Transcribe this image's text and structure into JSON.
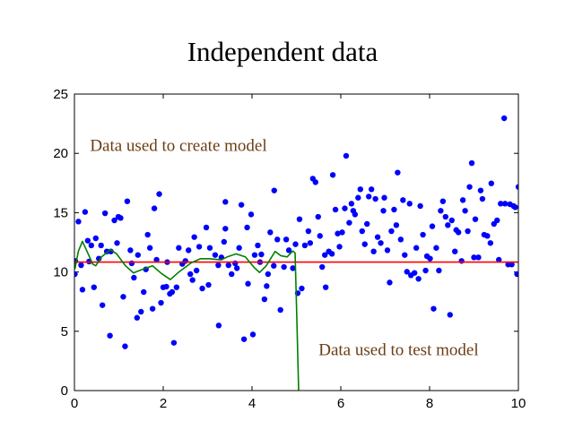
{
  "chart_data": {
    "type": "scatter",
    "title": "Independent data",
    "xlabel": "",
    "ylabel": "",
    "xlim": [
      0,
      10
    ],
    "ylim": [
      0,
      25
    ],
    "xticks": [
      0,
      2,
      4,
      6,
      8,
      10
    ],
    "yticks": [
      0,
      5,
      10,
      15,
      20,
      25
    ],
    "grid": false,
    "annotations": [
      {
        "text": "Data used to create model",
        "x": 0.35,
        "y": 20.2
      },
      {
        "text": "Data used to test model",
        "x": 5.5,
        "y": 3.0
      }
    ],
    "colors": {
      "points": "#0000ff",
      "mean_line": "#ff0000",
      "fit_curve": "#007f00",
      "annotation": "#6b3d12"
    },
    "series": [
      {
        "name": "data",
        "type": "scatter",
        "points": [
          [
            0.01,
            9.82
          ],
          [
            0.09,
            14.25
          ],
          [
            0.02,
            10.93
          ],
          [
            0.15,
            10.57
          ],
          [
            0.24,
            15.06
          ],
          [
            0.18,
            8.51
          ],
          [
            0.3,
            12.64
          ],
          [
            0.33,
            10.88
          ],
          [
            0.38,
            12.24
          ],
          [
            0.44,
            8.71
          ],
          [
            0.48,
            12.84
          ],
          [
            0.55,
            11.13
          ],
          [
            0.6,
            12.24
          ],
          [
            0.63,
            7.2
          ],
          [
            0.69,
            14.95
          ],
          [
            0.73,
            11.73
          ],
          [
            0.8,
            4.63
          ],
          [
            0.82,
            11.73
          ],
          [
            0.9,
            14.35
          ],
          [
            0.96,
            12.44
          ],
          [
            0.99,
            14.65
          ],
          [
            1.04,
            14.55
          ],
          [
            1.1,
            7.91
          ],
          [
            1.14,
            3.73
          ],
          [
            1.19,
            15.96
          ],
          [
            1.26,
            11.83
          ],
          [
            1.29,
            10.73
          ],
          [
            1.34,
            9.52
          ],
          [
            1.43,
            11.43
          ],
          [
            1.41,
            6.14
          ],
          [
            1.5,
            6.65
          ],
          [
            1.56,
            8.31
          ],
          [
            1.61,
            10.22
          ],
          [
            1.65,
            13.14
          ],
          [
            1.7,
            12.03
          ],
          [
            1.76,
            6.9
          ],
          [
            1.8,
            15.36
          ],
          [
            1.85,
            11.03
          ],
          [
            1.91,
            16.57
          ],
          [
            1.95,
            7.4
          ],
          [
            2.0,
            8.71
          ],
          [
            2.07,
            8.76
          ],
          [
            2.09,
            10.83
          ],
          [
            2.15,
            8.16
          ],
          [
            2.2,
            8.31
          ],
          [
            2.24,
            4.03
          ],
          [
            2.3,
            8.71
          ],
          [
            2.35,
            12.03
          ],
          [
            2.43,
            10.68
          ],
          [
            2.5,
            10.93
          ],
          [
            2.57,
            11.83
          ],
          [
            2.61,
            9.82
          ],
          [
            2.66,
            9.32
          ],
          [
            2.7,
            12.94
          ],
          [
            2.75,
            10.12
          ],
          [
            2.81,
            12.13
          ],
          [
            2.88,
            8.61
          ],
          [
            2.97,
            13.75
          ],
          [
            3.02,
            8.91
          ],
          [
            3.05,
            12.03
          ],
          [
            3.17,
            11.43
          ],
          [
            3.24,
            10.57
          ],
          [
            3.25,
            5.49
          ],
          [
            3.31,
            11.23
          ],
          [
            3.4,
            15.91
          ],
          [
            3.4,
            13.65
          ],
          [
            3.37,
            12.54
          ],
          [
            3.47,
            10.57
          ],
          [
            3.54,
            9.82
          ],
          [
            3.62,
            10.73
          ],
          [
            3.66,
            10.32
          ],
          [
            3.71,
            12.03
          ],
          [
            3.76,
            15.66
          ],
          [
            3.82,
            4.33
          ],
          [
            3.89,
            13.75
          ],
          [
            3.91,
            9.01
          ],
          [
            3.98,
            14.85
          ],
          [
            4.02,
            4.73
          ],
          [
            4.06,
            11.43
          ],
          [
            4.13,
            12.24
          ],
          [
            4.18,
            10.83
          ],
          [
            4.21,
            11.48
          ],
          [
            4.28,
            7.7
          ],
          [
            4.33,
            8.81
          ],
          [
            4.36,
            9.82
          ],
          [
            4.41,
            13.34
          ],
          [
            4.5,
            16.87
          ],
          [
            4.49,
            10.52
          ],
          [
            4.57,
            12.74
          ],
          [
            4.64,
            6.8
          ],
          [
            4.72,
            10.42
          ],
          [
            4.77,
            12.74
          ],
          [
            4.83,
            11.83
          ],
          [
            4.92,
            10.32
          ],
          [
            4.98,
            12.34
          ],
          [
            5.03,
            8.21
          ],
          [
            5.07,
            14.45
          ],
          [
            5.12,
            8.61
          ],
          [
            5.19,
            12.24
          ],
          [
            5.27,
            13.44
          ],
          [
            5.31,
            12.44
          ],
          [
            5.37,
            17.87
          ],
          [
            5.43,
            17.57
          ],
          [
            5.49,
            14.65
          ],
          [
            5.53,
            13.04
          ],
          [
            5.58,
            10.42
          ],
          [
            5.66,
            8.71
          ],
          [
            5.64,
            11.43
          ],
          [
            5.73,
            11.73
          ],
          [
            5.8,
            11.53
          ],
          [
            5.82,
            18.18
          ],
          [
            5.88,
            15.26
          ],
          [
            5.93,
            13.24
          ],
          [
            5.97,
            12.13
          ],
          [
            6.03,
            13.34
          ],
          [
            6.09,
            15.36
          ],
          [
            6.12,
            19.79
          ],
          [
            6.19,
            14.15
          ],
          [
            6.24,
            15.76
          ],
          [
            6.28,
            15.16
          ],
          [
            6.32,
            14.85
          ],
          [
            6.39,
            16.26
          ],
          [
            6.44,
            16.97
          ],
          [
            6.48,
            13.44
          ],
          [
            6.54,
            12.34
          ],
          [
            6.59,
            14.05
          ],
          [
            6.63,
            16.36
          ],
          [
            6.69,
            16.97
          ],
          [
            6.74,
            11.73
          ],
          [
            6.78,
            16.16
          ],
          [
            6.83,
            12.94
          ],
          [
            6.9,
            12.44
          ],
          [
            6.96,
            15.16
          ],
          [
            6.98,
            16.26
          ],
          [
            7.05,
            11.83
          ],
          [
            7.1,
            9.11
          ],
          [
            7.14,
            13.44
          ],
          [
            7.2,
            15.26
          ],
          [
            7.25,
            13.95
          ],
          [
            7.28,
            18.38
          ],
          [
            7.35,
            12.74
          ],
          [
            7.4,
            16.06
          ],
          [
            7.44,
            11.43
          ],
          [
            7.49,
            10.02
          ],
          [
            7.55,
            15.76
          ],
          [
            7.58,
            9.72
          ],
          [
            7.66,
            9.92
          ],
          [
            7.7,
            12.03
          ],
          [
            7.75,
            9.42
          ],
          [
            7.79,
            15.56
          ],
          [
            7.85,
            13.14
          ],
          [
            7.91,
            10.12
          ],
          [
            7.94,
            11.33
          ],
          [
            8.01,
            11.13
          ],
          [
            8.06,
            13.85
          ],
          [
            8.09,
            6.9
          ],
          [
            8.15,
            12.03
          ],
          [
            8.21,
            10.12
          ],
          [
            8.25,
            15.16
          ],
          [
            8.3,
            15.96
          ],
          [
            8.36,
            14.65
          ],
          [
            8.41,
            13.95
          ],
          [
            8.46,
            6.39
          ],
          [
            8.5,
            14.35
          ],
          [
            8.57,
            11.73
          ],
          [
            8.6,
            13.54
          ],
          [
            8.65,
            13.34
          ],
          [
            8.72,
            10.93
          ],
          [
            8.75,
            16.06
          ],
          [
            8.8,
            15.16
          ],
          [
            8.86,
            13.44
          ],
          [
            8.9,
            17.17
          ],
          [
            8.95,
            19.18
          ],
          [
            9.03,
            14.45
          ],
          [
            9.0,
            11.23
          ],
          [
            9.1,
            11.23
          ],
          [
            9.15,
            16.87
          ],
          [
            9.19,
            16.16
          ],
          [
            9.23,
            13.14
          ],
          [
            9.3,
            13.04
          ],
          [
            9.37,
            12.44
          ],
          [
            9.39,
            17.47
          ],
          [
            9.45,
            14.05
          ],
          [
            9.52,
            14.35
          ],
          [
            9.56,
            11.03
          ],
          [
            9.6,
            15.76
          ],
          [
            9.68,
            22.96
          ],
          [
            9.7,
            15.76
          ],
          [
            9.77,
            10.63
          ],
          [
            9.81,
            15.71
          ],
          [
            9.85,
            10.63
          ],
          [
            9.89,
            15.56
          ],
          [
            9.93,
            15.46
          ],
          [
            9.97,
            9.82
          ],
          [
            10.0,
            17.17
          ]
        ]
      },
      {
        "name": "mean",
        "type": "line",
        "points": [
          [
            0,
            10.83
          ],
          [
            10,
            10.83
          ]
        ]
      },
      {
        "name": "polynomial fit",
        "type": "line",
        "points": [
          [
            0.01,
            10.26
          ],
          [
            0.09,
            11.77
          ],
          [
            0.18,
            12.58
          ],
          [
            0.28,
            11.77
          ],
          [
            0.41,
            10.67
          ],
          [
            0.48,
            10.52
          ],
          [
            0.61,
            11.27
          ],
          [
            0.81,
            11.88
          ],
          [
            0.95,
            11.53
          ],
          [
            1.15,
            10.52
          ],
          [
            1.33,
            9.92
          ],
          [
            1.56,
            10.26
          ],
          [
            1.76,
            10.52
          ],
          [
            1.96,
            9.87
          ],
          [
            2.16,
            9.36
          ],
          [
            2.36,
            10.02
          ],
          [
            2.63,
            10.77
          ],
          [
            2.84,
            11.12
          ],
          [
            3.04,
            11.12
          ],
          [
            3.31,
            11.02
          ],
          [
            3.44,
            11.27
          ],
          [
            3.64,
            11.53
          ],
          [
            3.85,
            11.27
          ],
          [
            4.05,
            10.37
          ],
          [
            4.17,
            9.96
          ],
          [
            4.32,
            10.52
          ],
          [
            4.52,
            11.73
          ],
          [
            4.65,
            11.37
          ],
          [
            4.79,
            11.27
          ],
          [
            4.92,
            11.77
          ],
          [
            4.97,
            11.6
          ],
          [
            5.01,
            6.0
          ],
          [
            5.05,
            0
          ],
          [
            5.07,
            -3
          ]
        ]
      }
    ]
  }
}
